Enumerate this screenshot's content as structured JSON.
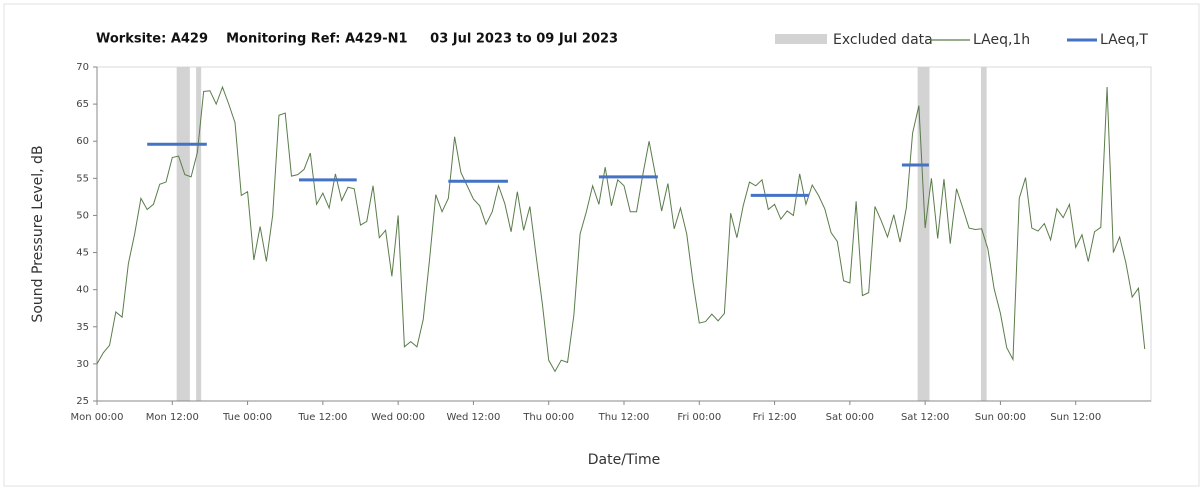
{
  "chart_data": {
    "type": "line",
    "title": "Worksite: A429    Monitoring Ref: A429-N1     03 Jul 2023 to 09 Jul 2023",
    "xlabel": "Date/Time",
    "ylabel": "Sound Pressure Level, dB",
    "xlim": [
      0,
      168
    ],
    "ylim": [
      25,
      70
    ],
    "yticks": [
      25,
      30,
      35,
      40,
      45,
      50,
      55,
      60,
      65,
      70
    ],
    "xticks": [
      {
        "value": 0,
        "label": "Mon 00:00"
      },
      {
        "value": 12,
        "label": "Mon 12:00"
      },
      {
        "value": 24,
        "label": "Tue 00:00"
      },
      {
        "value": 36,
        "label": "Tue 12:00"
      },
      {
        "value": 48,
        "label": "Wed 00:00"
      },
      {
        "value": 60,
        "label": "Wed 12:00"
      },
      {
        "value": 72,
        "label": "Thu 00:00"
      },
      {
        "value": 84,
        "label": "Thu 12:00"
      },
      {
        "value": 96,
        "label": "Fri 00:00"
      },
      {
        "value": 108,
        "label": "Fri 12:00"
      },
      {
        "value": 120,
        "label": "Sat 00:00"
      },
      {
        "value": 132,
        "label": "Sat 12:00"
      },
      {
        "value": 144,
        "label": "Sun 00:00"
      },
      {
        "value": 156,
        "label": "Sun 12:00"
      }
    ],
    "excluded": {
      "name": "Excluded data",
      "color": "#d3d3d3",
      "start": [
        12.7,
        15.8,
        130.8,
        140.9
      ],
      "end": [
        14.8,
        16.6,
        132.7,
        141.8
      ]
    },
    "x": [
      0,
      1,
      2,
      3,
      4,
      5,
      6,
      7,
      8,
      9,
      10,
      11,
      12,
      13,
      14,
      15,
      16,
      17,
      18,
      19,
      20,
      21,
      22,
      23,
      24,
      25,
      26,
      27,
      28,
      29,
      30,
      31,
      32,
      33,
      34,
      35,
      36,
      37,
      38,
      39,
      40,
      41,
      42,
      43,
      44,
      45,
      46,
      47,
      48,
      49,
      50,
      51,
      52,
      53,
      54,
      55,
      56,
      57,
      58,
      59,
      60,
      61,
      62,
      63,
      64,
      65,
      66,
      67,
      68,
      69,
      70,
      71,
      72,
      73,
      74,
      75,
      76,
      77,
      78,
      79,
      80,
      81,
      82,
      83,
      84,
      85,
      86,
      87,
      88,
      89,
      90,
      91,
      92,
      93,
      94,
      95,
      96,
      97,
      98,
      99,
      100,
      101,
      102,
      103,
      104,
      105,
      106,
      107,
      108,
      109,
      110,
      111,
      112,
      113,
      114,
      115,
      116,
      117,
      118,
      119,
      120,
      121,
      122,
      123,
      124,
      125,
      126,
      127,
      128,
      129,
      130,
      131,
      132,
      133,
      134,
      135,
      136,
      137,
      138,
      139,
      140,
      141,
      142,
      143,
      144,
      145,
      146,
      147,
      148,
      149,
      150,
      151,
      152,
      153,
      154,
      155,
      156,
      157,
      158,
      159,
      160,
      161,
      162,
      163,
      164,
      165,
      166,
      167
    ],
    "series": [
      {
        "name": "LAeq,1h",
        "color": "#5b7c4b",
        "values": [
          30,
          31.5,
          32.5,
          37,
          36.3,
          43.5,
          47.5,
          52.3,
          50.8,
          51.5,
          54.2,
          54.5,
          57.8,
          58,
          55.5,
          55.2,
          58.5,
          66.7,
          66.8,
          65,
          67.3,
          65,
          62.5,
          52.7,
          53.2,
          44,
          48.5,
          43.8,
          50,
          63.5,
          63.8,
          55.3,
          55.5,
          56.2,
          58.4,
          51.5,
          53,
          51,
          55.6,
          52,
          53.8,
          53.6,
          48.7,
          49.2,
          54,
          47,
          48,
          41.8,
          50,
          32.3,
          33,
          32.3,
          36,
          44,
          52.8,
          50.5,
          52.3,
          60.6,
          55.8,
          54,
          52.2,
          51.3,
          48.8,
          50.5,
          54,
          51.6,
          47.8,
          53.2,
          48,
          51.2,
          44.5,
          38,
          30.5,
          29,
          30.5,
          30.2,
          36.5,
          47.5,
          50.5,
          54,
          51.5,
          56.5,
          51.3,
          54.8,
          54,
          50.5,
          50.5,
          55.5,
          60,
          55.5,
          50.6,
          54.3,
          48.2,
          51,
          47.5,
          41,
          35.5,
          35.7,
          36.7,
          35.8,
          36.8,
          50.3,
          47,
          51.3,
          54.5,
          54,
          54.8,
          50.8,
          51.5,
          49.5,
          50.6,
          50,
          55.6,
          51.5,
          54.1,
          52.7,
          50.9,
          47.7,
          46.5,
          41.2,
          40.9,
          51.9,
          39.2,
          39.6,
          51.2,
          49.3,
          47.1,
          50.1,
          46.4,
          51,
          61.1,
          64.8,
          48.3,
          55,
          46.9,
          54.9,
          46.2,
          53.6,
          51,
          48.3,
          48.1,
          48.2,
          45.5,
          40.1,
          36.8,
          32.2,
          30.6,
          52.3,
          55.1,
          48.3,
          47.9,
          48.9,
          46.7,
          50.9,
          49.7,
          51.5,
          45.7,
          47.4,
          43.8,
          47.8,
          48.4,
          67.3,
          45,
          47.1,
          43.6,
          39,
          40.2,
          32
        ]
      }
    ],
    "period": {
      "name": "LAeq,T",
      "color": "#4472c4",
      "values": [
        59.6,
        54.8,
        54.6,
        55.2,
        52.7,
        56.8
      ],
      "start": [
        8,
        32.2,
        56,
        80,
        104.2,
        128.3
      ],
      "end": [
        17.5,
        41.4,
        65.5,
        89.4,
        113.5,
        132.6
      ]
    }
  }
}
